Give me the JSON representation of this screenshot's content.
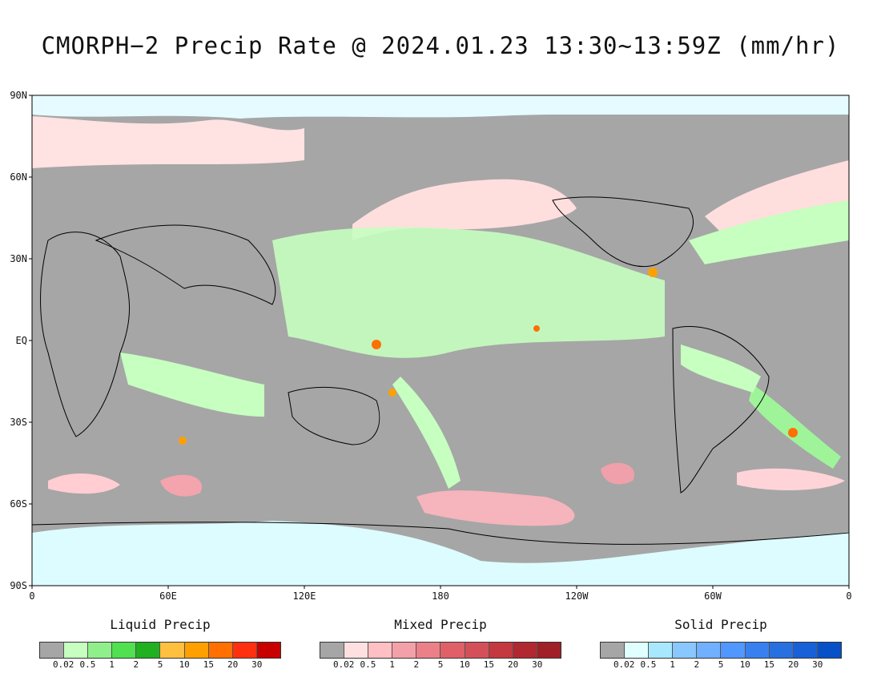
{
  "title": "CMORPH−2 Precip Rate @ 2024.01.23 13:30~13:59Z (mm/hr)",
  "map": {
    "background_color": "#a6a6a6",
    "lat_labels": [
      "90N",
      "60N",
      "30N",
      "EQ",
      "30S",
      "60S",
      "90S"
    ],
    "lon_labels": [
      "0",
      "60E",
      "120E",
      "180",
      "120W",
      "60W",
      "0"
    ]
  },
  "legends": [
    {
      "title": "Liquid Precip",
      "colors": [
        "#a6a6a6",
        "#c6ffc0",
        "#8ff08b",
        "#50e050",
        "#20b020",
        "#ffc040",
        "#ffa000",
        "#ff7000",
        "#ff3010",
        "#c80000"
      ],
      "ticks": [
        "0.02",
        "0.5",
        "1",
        "2",
        "5",
        "10",
        "15",
        "20",
        "30"
      ]
    },
    {
      "title": "Mixed Precip",
      "colors": [
        "#a6a6a6",
        "#ffe0e0",
        "#ffc0c4",
        "#f4a0a8",
        "#ec8088",
        "#e06068",
        "#d45058",
        "#c43840",
        "#b02830",
        "#a02028"
      ],
      "ticks": [
        "0.02",
        "0.5",
        "1",
        "2",
        "5",
        "10",
        "15",
        "20",
        "30"
      ]
    },
    {
      "title": "Solid Precip",
      "colors": [
        "#a6a6a6",
        "#e0ffff",
        "#a8e8ff",
        "#88c8ff",
        "#70b0ff",
        "#5098ff",
        "#3880f0",
        "#2870e0",
        "#1860d8",
        "#0850c8"
      ],
      "ticks": [
        "0.02",
        "0.5",
        "1",
        "2",
        "5",
        "10",
        "15",
        "20",
        "30"
      ]
    }
  ]
}
